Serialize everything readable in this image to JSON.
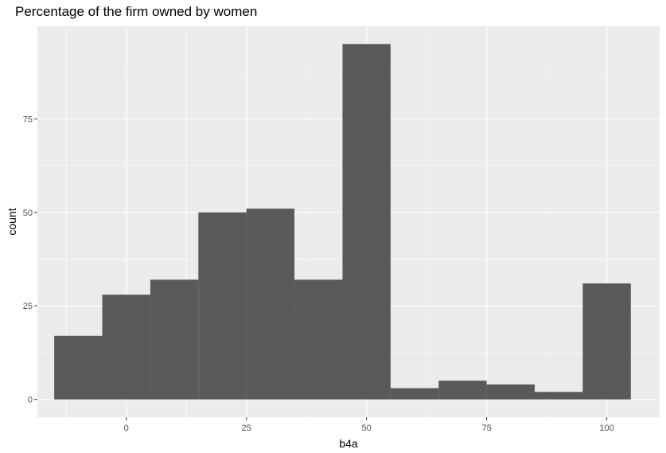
{
  "chart_data": {
    "type": "bar",
    "title": "Percentage of the firm owned by women",
    "xlabel": "b4a",
    "ylabel": "count",
    "bin_width": 10,
    "bins": [
      {
        "center": -10,
        "count": 17
      },
      {
        "center": 0,
        "count": 28
      },
      {
        "center": 10,
        "count": 32
      },
      {
        "center": 20,
        "count": 50
      },
      {
        "center": 30,
        "count": 51
      },
      {
        "center": 40,
        "count": 32
      },
      {
        "center": 50,
        "count": 95
      },
      {
        "center": 60,
        "count": 3
      },
      {
        "center": 70,
        "count": 5
      },
      {
        "center": 80,
        "count": 4
      },
      {
        "center": 90,
        "count": 2
      },
      {
        "center": 100,
        "count": 31
      }
    ],
    "xlim": [
      -18.5,
      111
    ],
    "ylim": [
      -4.75,
      99.75
    ],
    "x_ticks": [
      0,
      25,
      50,
      75,
      100
    ],
    "y_ticks": [
      0,
      25,
      50,
      75
    ],
    "grid": true,
    "colors": {
      "panel": "#EBEBEB",
      "grid": "#FFFFFF",
      "bar": "#595959",
      "tick_text": "#4D4D4D",
      "tick_mark": "#333333"
    }
  }
}
